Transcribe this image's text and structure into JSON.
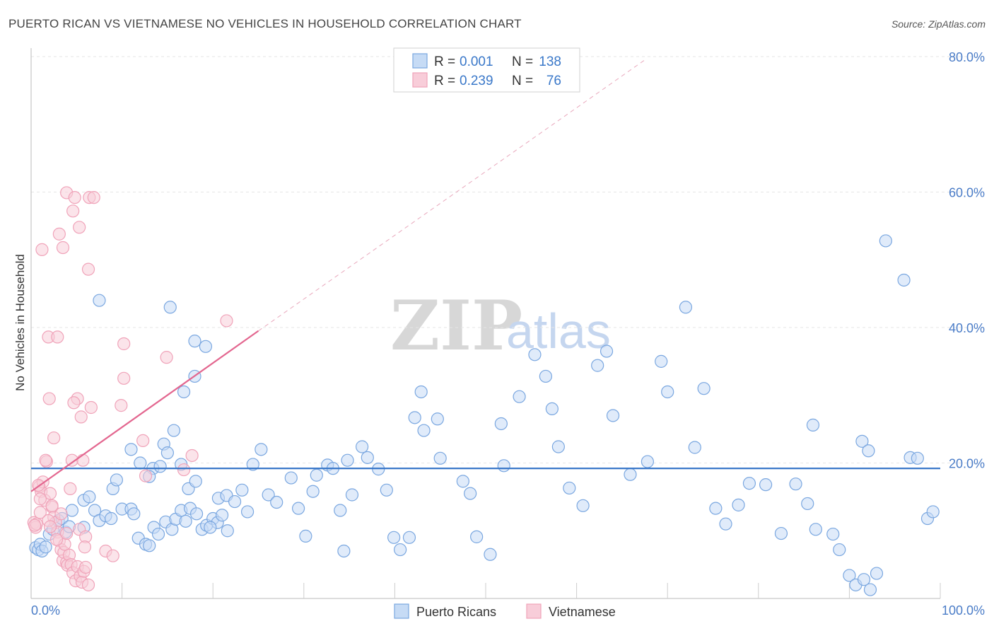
{
  "chart_data": {
    "type": "scatter",
    "title": "PUERTO RICAN VS VIETNAMESE NO VEHICLES IN HOUSEHOLD CORRELATION CHART",
    "source": "Source: ZipAtlas.com",
    "ylabel": "No Vehicles in Household",
    "xlabel": "",
    "xlim": [
      0,
      100
    ],
    "ylim": [
      0,
      80
    ],
    "x_tick_labels": [
      "0.0%",
      "100.0%"
    ],
    "y_tick_labels": [
      "20.0%",
      "40.0%",
      "60.0%",
      "80.0%"
    ],
    "y_tick_values": [
      20,
      40,
      60,
      80
    ],
    "grid": true,
    "watermark": {
      "zip": "ZIP",
      "atlas": "atlas"
    },
    "legend_position": "top-center",
    "legend": {
      "r_label": "R =",
      "n_label": "N =",
      "rows": [
        {
          "series": "Puerto Ricans",
          "r": "0.001",
          "n": "138"
        },
        {
          "series": "Vietnamese",
          "r": "0.239",
          "n": "76"
        }
      ]
    },
    "series": [
      {
        "name": "Puerto Ricans",
        "color": "#7aa7e0",
        "fill": "#c6dbf5",
        "trend_color": "#3a78c9",
        "trend": {
          "x": [
            0,
            100
          ],
          "y": [
            19.2,
            19.2
          ]
        },
        "points": [
          [
            0.5,
            7.5
          ],
          [
            0.8,
            7.2
          ],
          [
            1.0,
            8.0
          ],
          [
            1.2,
            7.0
          ],
          [
            1.6,
            7.6
          ],
          [
            2.0,
            9.5
          ],
          [
            2.4,
            10.2
          ],
          [
            3.0,
            11.5
          ],
          [
            3.4,
            11.8
          ],
          [
            3.8,
            9.8
          ],
          [
            4.2,
            10.6
          ],
          [
            4.5,
            13.0
          ],
          [
            5.8,
            14.5
          ],
          [
            5.8,
            10.5
          ],
          [
            6.4,
            15.0
          ],
          [
            7.0,
            13.0
          ],
          [
            7.5,
            11.5
          ],
          [
            8.2,
            12.2
          ],
          [
            8.8,
            11.8
          ],
          [
            9.0,
            16.2
          ],
          [
            9.4,
            17.5
          ],
          [
            10.0,
            13.2
          ],
          [
            11.0,
            13.2
          ],
          [
            11.3,
            12.5
          ],
          [
            11.8,
            8.9
          ],
          [
            12.6,
            8.0
          ],
          [
            13.0,
            7.8
          ],
          [
            13.5,
            10.5
          ],
          [
            14.0,
            9.5
          ],
          [
            14.8,
            11.3
          ],
          [
            15.5,
            10.2
          ],
          [
            15.9,
            11.7
          ],
          [
            16.5,
            13.0
          ],
          [
            17.0,
            11.4
          ],
          [
            17.5,
            13.3
          ],
          [
            18.2,
            12.5
          ],
          [
            18.8,
            10.2
          ],
          [
            19.3,
            10.8
          ],
          [
            20.0,
            11.8
          ],
          [
            20.5,
            11.2
          ],
          [
            21.0,
            12.3
          ],
          [
            21.6,
            10.0
          ],
          [
            7.5,
            44.0
          ],
          [
            15.3,
            43.0
          ],
          [
            18.0,
            38.0
          ],
          [
            19.2,
            37.2
          ],
          [
            16.8,
            30.5
          ],
          [
            18.0,
            32.8
          ],
          [
            11.0,
            22.0
          ],
          [
            12.0,
            20.0
          ],
          [
            13.4,
            19.2
          ],
          [
            14.2,
            19.5
          ],
          [
            13.0,
            18.0
          ],
          [
            14.6,
            22.8
          ],
          [
            15.0,
            21.5
          ],
          [
            15.7,
            24.8
          ],
          [
            16.5,
            19.8
          ],
          [
            17.3,
            16.2
          ],
          [
            18.1,
            17.3
          ],
          [
            20.6,
            14.8
          ],
          [
            19.7,
            10.5
          ],
          [
            21.5,
            15.2
          ],
          [
            22.4,
            14.3
          ],
          [
            23.2,
            16.0
          ],
          [
            23.8,
            12.8
          ],
          [
            24.4,
            19.8
          ],
          [
            25.3,
            22.0
          ],
          [
            26.1,
            15.3
          ],
          [
            27.0,
            14.2
          ],
          [
            28.6,
            17.8
          ],
          [
            29.4,
            13.3
          ],
          [
            30.2,
            9.2
          ],
          [
            31.0,
            15.8
          ],
          [
            31.4,
            18.2
          ],
          [
            32.6,
            19.7
          ],
          [
            33.2,
            19.2
          ],
          [
            34.0,
            13.0
          ],
          [
            34.4,
            7.0
          ],
          [
            34.8,
            20.4
          ],
          [
            35.3,
            15.3
          ],
          [
            36.4,
            22.4
          ],
          [
            37.0,
            20.8
          ],
          [
            38.2,
            19.1
          ],
          [
            39.1,
            16.0
          ],
          [
            39.9,
            9.0
          ],
          [
            40.6,
            7.2
          ],
          [
            41.6,
            9.0
          ],
          [
            42.2,
            26.7
          ],
          [
            42.9,
            30.5
          ],
          [
            43.2,
            24.8
          ],
          [
            44.7,
            26.5
          ],
          [
            45.0,
            20.7
          ],
          [
            47.5,
            17.3
          ],
          [
            48.3,
            15.5
          ],
          [
            49.0,
            9.1
          ],
          [
            50.5,
            6.5
          ],
          [
            51.7,
            25.8
          ],
          [
            52.0,
            19.6
          ],
          [
            53.7,
            29.8
          ],
          [
            55.4,
            36.0
          ],
          [
            56.6,
            32.8
          ],
          [
            57.3,
            28.0
          ],
          [
            58.0,
            22.4
          ],
          [
            59.2,
            16.3
          ],
          [
            60.7,
            13.7
          ],
          [
            62.3,
            34.4
          ],
          [
            63.3,
            36.5
          ],
          [
            64.0,
            27.0
          ],
          [
            65.9,
            18.3
          ],
          [
            67.8,
            20.2
          ],
          [
            69.3,
            35.0
          ],
          [
            70.0,
            30.5
          ],
          [
            72.0,
            43.0
          ],
          [
            73.0,
            22.3
          ],
          [
            75.3,
            13.3
          ],
          [
            76.4,
            11.0
          ],
          [
            77.8,
            13.8
          ],
          [
            79.0,
            17.0
          ],
          [
            80.8,
            16.8
          ],
          [
            82.5,
            9.6
          ],
          [
            84.1,
            16.9
          ],
          [
            85.4,
            14.0
          ],
          [
            86.3,
            10.2
          ],
          [
            88.2,
            9.5
          ],
          [
            88.9,
            7.2
          ],
          [
            90.0,
            3.4
          ],
          [
            90.7,
            2.0
          ],
          [
            91.6,
            2.8
          ],
          [
            92.3,
            1.3
          ],
          [
            93.0,
            3.7
          ],
          [
            94.0,
            52.8
          ],
          [
            96.0,
            47.0
          ],
          [
            96.7,
            20.8
          ],
          [
            97.5,
            20.7
          ],
          [
            98.6,
            11.8
          ],
          [
            99.2,
            12.8
          ],
          [
            91.4,
            23.2
          ],
          [
            92.1,
            21.8
          ],
          [
            86.0,
            25.6
          ],
          [
            74.0,
            31.0
          ]
        ]
      },
      {
        "name": "Vietnamese",
        "color": "#f0a3b9",
        "fill": "#f8cdd9",
        "trend_color": "#e3668f",
        "trend": {
          "x": [
            0,
            25
          ],
          "y": [
            15.8,
            39.5
          ]
        },
        "trend_dashed": {
          "x": [
            25,
            67.5
          ],
          "y": [
            39.5,
            79.5
          ]
        },
        "points": [
          [
            0.3,
            11.2
          ],
          [
            0.5,
            10.5
          ],
          [
            0.6,
            11.0
          ],
          [
            0.9,
            16.5
          ],
          [
            1.1,
            15.8
          ],
          [
            1.3,
            17.2
          ],
          [
            1.5,
            14.5
          ],
          [
            1.7,
            20.2
          ],
          [
            1.9,
            38.6
          ],
          [
            2.0,
            29.5
          ],
          [
            2.1,
            15.5
          ],
          [
            2.3,
            13.5
          ],
          [
            2.5,
            12.0
          ],
          [
            2.7,
            11.2
          ],
          [
            2.9,
            9.8
          ],
          [
            3.1,
            8.5
          ],
          [
            3.3,
            7.2
          ],
          [
            3.5,
            5.6
          ],
          [
            3.6,
            6.8
          ],
          [
            3.7,
            8.0
          ],
          [
            3.9,
            5.3
          ],
          [
            4.0,
            4.9
          ],
          [
            4.2,
            6.4
          ],
          [
            4.4,
            5.0
          ],
          [
            4.6,
            3.8
          ],
          [
            4.9,
            2.6
          ],
          [
            5.1,
            4.7
          ],
          [
            5.4,
            3.3
          ],
          [
            5.6,
            2.4
          ],
          [
            5.8,
            4.0
          ],
          [
            6.0,
            4.6
          ],
          [
            6.3,
            2.0
          ],
          [
            1.2,
            51.5
          ],
          [
            3.1,
            53.8
          ],
          [
            3.5,
            51.8
          ],
          [
            3.9,
            59.9
          ],
          [
            4.6,
            57.2
          ],
          [
            4.8,
            59.2
          ],
          [
            5.3,
            54.8
          ],
          [
            6.4,
            59.2
          ],
          [
            6.9,
            59.2
          ],
          [
            6.3,
            48.6
          ],
          [
            2.9,
            38.6
          ],
          [
            10.2,
            37.6
          ],
          [
            14.9,
            35.6
          ],
          [
            21.5,
            41.0
          ],
          [
            10.2,
            32.5
          ],
          [
            5.1,
            29.5
          ],
          [
            6.6,
            28.2
          ],
          [
            9.9,
            28.5
          ],
          [
            4.7,
            28.9
          ],
          [
            5.5,
            26.8
          ],
          [
            2.5,
            23.7
          ],
          [
            12.3,
            23.3
          ],
          [
            1.6,
            20.4
          ],
          [
            4.5,
            20.4
          ],
          [
            5.7,
            20.4
          ],
          [
            12.6,
            18.1
          ],
          [
            16.8,
            19.0
          ],
          [
            17.7,
            21.1
          ],
          [
            4.3,
            16.2
          ],
          [
            1.0,
            12.7
          ],
          [
            2.3,
            13.7
          ],
          [
            3.3,
            12.5
          ],
          [
            1.9,
            11.5
          ],
          [
            2.1,
            10.6
          ],
          [
            5.3,
            10.2
          ],
          [
            6.0,
            9.1
          ],
          [
            8.2,
            7.0
          ],
          [
            9.0,
            6.3
          ],
          [
            0.8,
            16.7
          ],
          [
            1.0,
            14.7
          ],
          [
            0.4,
            10.8
          ],
          [
            2.8,
            8.7
          ],
          [
            3.9,
            9.6
          ],
          [
            5.9,
            7.6
          ]
        ]
      }
    ]
  },
  "bottom_legend": [
    "Puerto Ricans",
    "Vietnamese"
  ]
}
